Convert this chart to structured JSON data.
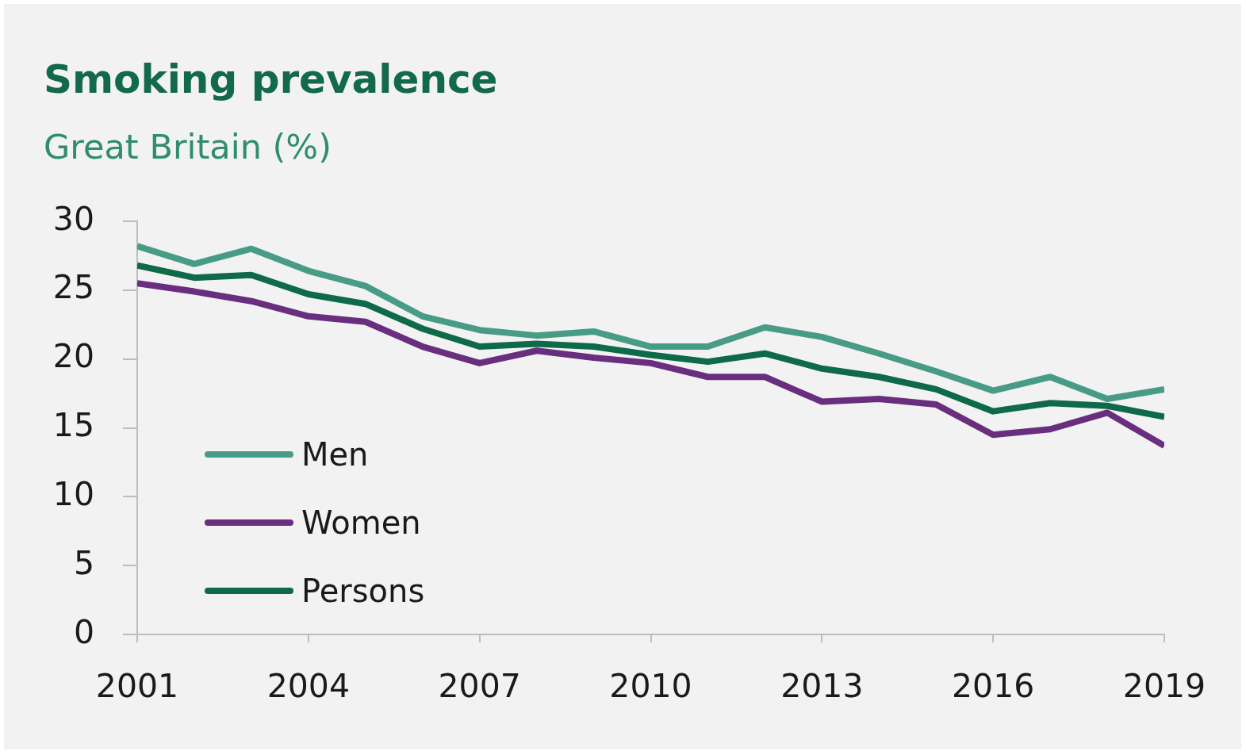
{
  "chart_data": {
    "type": "line",
    "title": "Smoking prevalence",
    "subtitle": "Great Britain (%)",
    "x": [
      2001,
      2002,
      2003,
      2004,
      2005,
      2006,
      2007,
      2008,
      2009,
      2010,
      2011,
      2012,
      2013,
      2014,
      2015,
      2016,
      2017,
      2018,
      2019
    ],
    "series": [
      {
        "name": "Men",
        "color": "#489c85",
        "values": [
          28.2,
          26.9,
          28.0,
          26.4,
          25.3,
          23.1,
          22.1,
          21.7,
          22.0,
          20.9,
          20.9,
          22.3,
          21.6,
          20.4,
          19.1,
          17.7,
          18.7,
          17.1,
          17.8
        ]
      },
      {
        "name": "Women",
        "color": "#692f7e",
        "values": [
          25.5,
          24.9,
          24.2,
          23.1,
          22.7,
          20.9,
          19.7,
          20.6,
          20.1,
          19.7,
          18.7,
          18.7,
          16.9,
          17.1,
          16.7,
          14.5,
          14.9,
          16.1,
          13.7
        ]
      },
      {
        "name": "Persons",
        "color": "#0e6a48",
        "values": [
          26.8,
          25.9,
          26.1,
          24.7,
          24.0,
          22.2,
          20.9,
          21.1,
          20.9,
          20.3,
          19.8,
          20.4,
          19.3,
          18.7,
          17.8,
          16.2,
          16.8,
          16.6,
          15.8
        ]
      }
    ],
    "xlim": [
      2001,
      2019
    ],
    "xticks": [
      2001,
      2004,
      2007,
      2010,
      2013,
      2016,
      2019
    ],
    "ylim": [
      0,
      30
    ],
    "yticks": [
      0,
      5,
      10,
      15,
      20,
      25,
      30
    ],
    "grid": false,
    "legend": "bottom left",
    "marker": "none",
    "line_style": "solid"
  }
}
